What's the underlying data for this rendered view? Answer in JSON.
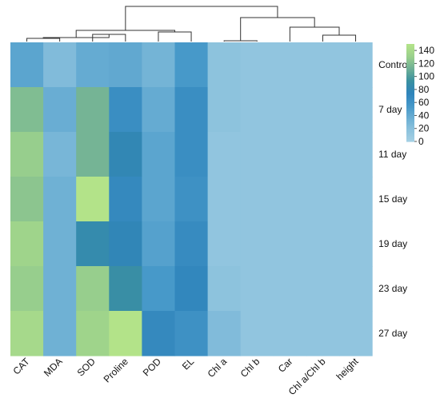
{
  "chart_data": {
    "type": "heatmap",
    "rows": [
      "Control",
      "7 day",
      "11 day",
      "15 day",
      "19 day",
      "23 day",
      "27 day"
    ],
    "columns": [
      "CAT",
      "MDA",
      "SOD",
      "Proline",
      "POD",
      "EL",
      "Chl a",
      "Chl b",
      "Car",
      "Chl a/Chl b",
      "height"
    ],
    "values": [
      [
        45,
        25,
        40,
        42,
        32,
        55,
        18,
        15,
        15,
        15,
        15
      ],
      [
        120,
        38,
        115,
        65,
        40,
        65,
        18,
        15,
        15,
        15,
        15
      ],
      [
        130,
        30,
        115,
        80,
        45,
        65,
        15,
        15,
        15,
        15,
        15
      ],
      [
        125,
        35,
        150,
        70,
        45,
        62,
        15,
        15,
        15,
        15,
        15
      ],
      [
        135,
        35,
        85,
        78,
        48,
        68,
        15,
        15,
        15,
        15,
        15
      ],
      [
        130,
        35,
        130,
        90,
        55,
        72,
        18,
        15,
        15,
        15,
        15
      ],
      [
        140,
        35,
        135,
        150,
        70,
        62,
        25,
        15,
        15,
        15,
        15
      ]
    ],
    "colorbar": {
      "ticks": [
        0,
        20,
        40,
        60,
        80,
        100,
        120,
        140
      ],
      "range": [
        0,
        150
      ]
    },
    "palette": [
      "#a6d1e5",
      "#8cc2dd",
      "#6aaed3",
      "#4497c8",
      "#2f84bb",
      "#3b91a0",
      "#6fb096",
      "#9ad08c",
      "#b3e389"
    ],
    "dendrogram": {
      "color": "#333333",
      "position": "top"
    },
    "legend_position": "right"
  }
}
